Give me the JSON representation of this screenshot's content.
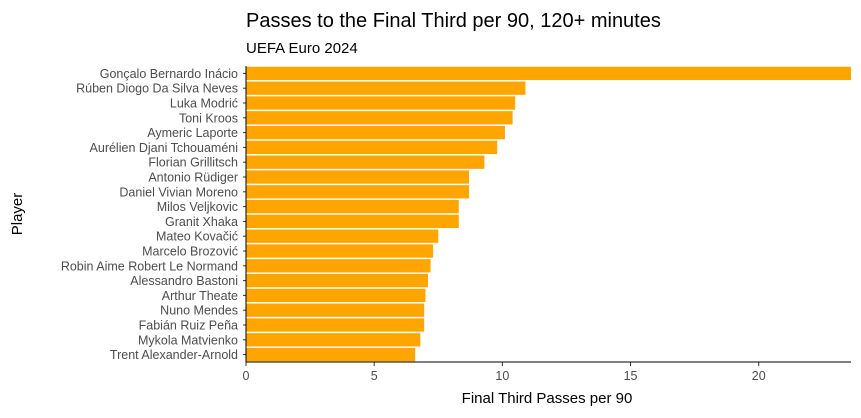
{
  "chart_data": {
    "type": "bar",
    "orientation": "horizontal",
    "title": "Passes to the Final Third per 90, 120+ minutes",
    "subtitle": "UEFA Euro 2024",
    "xlabel": "Final Third Passes per 90",
    "ylabel": "Player",
    "xlim": [
      0,
      23.6
    ],
    "xticks": [
      0,
      5,
      10,
      15,
      20
    ],
    "grid": false,
    "legend": "none",
    "bar_color": "#FFA500",
    "categories": [
      "Gonçalo Bernardo Inácio",
      "Rúben Diogo Da Silva Neves",
      "Luka Modrić",
      "Toni Kroos",
      "Aymeric Laporte",
      "Aurélien Djani Tchouaméni",
      "Florian Grillitsch",
      "Antonio Rüdiger",
      "Daniel Vivian Moreno",
      "Milos Veljkovic",
      "Granit Xhaka",
      "Mateo Kovačić",
      "Marcelo Brozović",
      "Robin Aime Robert Le Normand",
      "Alessandro Bastoni",
      "Arthur Theate",
      "Nuno Mendes",
      "Fabián Ruiz Peña",
      "Mykola Matvienko",
      "Trent Alexander-Arnold"
    ],
    "values": [
      23.6,
      10.9,
      10.5,
      10.4,
      10.1,
      9.8,
      9.3,
      8.7,
      8.7,
      8.3,
      8.3,
      7.5,
      7.3,
      7.2,
      7.1,
      7.0,
      6.95,
      6.95,
      6.8,
      6.6
    ]
  }
}
